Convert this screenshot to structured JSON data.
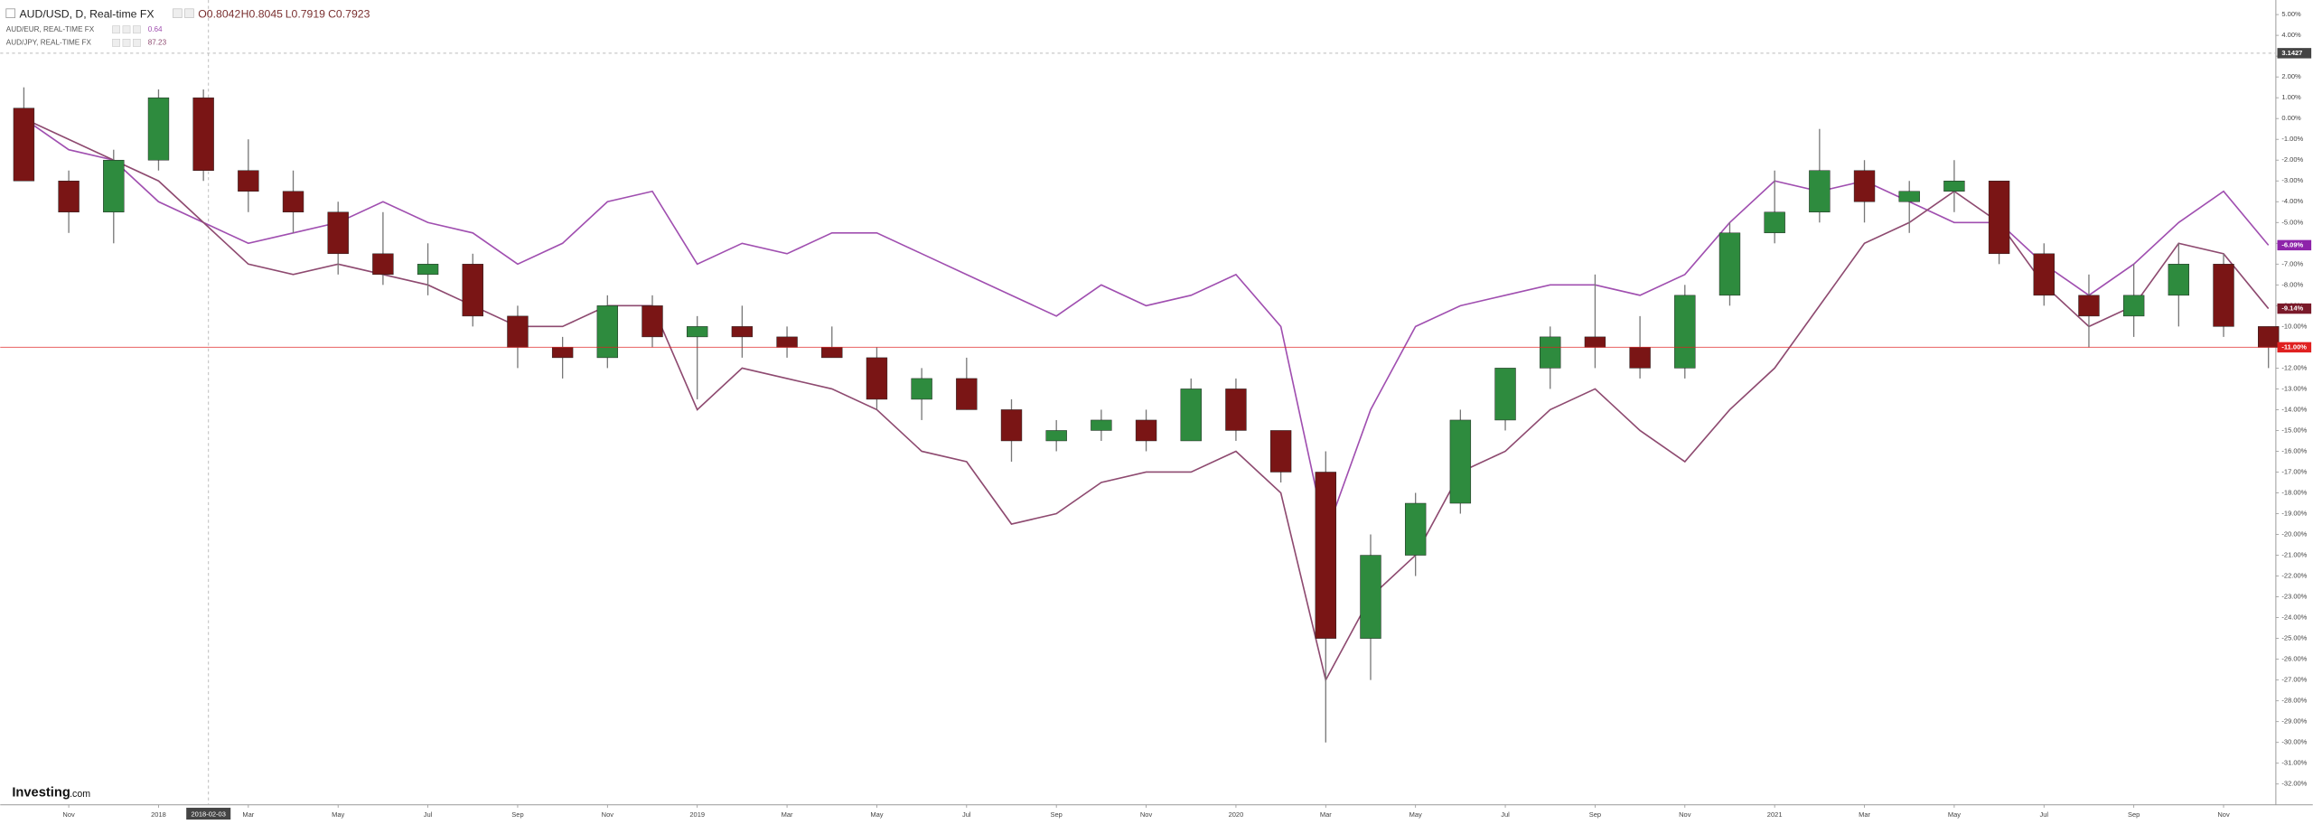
{
  "chart_data": {
    "type": "candlestick",
    "title": "AUD/USD, D, Real-time FX",
    "ohlc_labels": [
      "O0.8042",
      "H0.8045",
      "L0.7919",
      "C0.7923"
    ],
    "logo": [
      "Investing",
      ".com"
    ],
    "crosshair_x_label": "2018-02-03",
    "categories": [
      null,
      "Nov",
      null,
      "2018",
      null,
      "Mar",
      null,
      "May",
      null,
      "Jul",
      null,
      "Sep",
      null,
      "Nov",
      null,
      "2019",
      null,
      "Mar",
      null,
      "May",
      null,
      "Jul",
      null,
      "Sep",
      null,
      "Nov",
      null,
      "2020",
      null,
      "Mar",
      null,
      "May",
      null,
      "Jul",
      null,
      "Sep",
      null,
      "Nov",
      null,
      "2021",
      null,
      "Mar",
      null,
      "May",
      null,
      "Jul",
      null,
      "Sep",
      null,
      "Nov",
      null
    ],
    "open": [
      0.5,
      -3,
      -4.5,
      -2,
      1,
      -2.5,
      -3.5,
      -4.5,
      -6.5,
      -7.5,
      -7,
      -9.5,
      -11,
      -11.5,
      -9,
      -10.5,
      -10,
      -10.5,
      -11,
      -11.5,
      -13.5,
      -12.5,
      -14,
      -15.5,
      -15,
      -14.5,
      -15.5,
      -13,
      -15,
      -17,
      -25,
      -21,
      -18.5,
      -14.5,
      -12,
      -10.5,
      -11,
      -12,
      -8.5,
      -5.5,
      -4.5,
      -2.5,
      -4,
      -3.5,
      -3,
      -6.5,
      -8.5,
      -9.5,
      -8.5,
      -7,
      -10
    ],
    "high": [
      1.5,
      -2.5,
      -1.5,
      1.4,
      1.4,
      -1,
      -2.5,
      -4,
      -4.5,
      -6,
      -6.5,
      -9,
      -10.5,
      -8.5,
      -8.5,
      -9.5,
      -9,
      -10,
      -10,
      -11,
      -12,
      -11.5,
      -13.5,
      -14.5,
      -14,
      -14,
      -12.5,
      -12.5,
      -15,
      -16,
      -20,
      -18,
      -14,
      -12,
      -10,
      -7.5,
      -9.5,
      -8,
      -5,
      -2.5,
      -0.5,
      -2,
      -3,
      -2,
      -3,
      -6,
      -7.5,
      -7,
      -6,
      -6.5,
      -10
    ],
    "low": [
      -3,
      -5.5,
      -6,
      -2.5,
      -3,
      -4.5,
      -5.5,
      -7.5,
      -8,
      -8.5,
      -10,
      -12,
      -12.5,
      -12,
      -11,
      -13.5,
      -11.5,
      -11.5,
      -11.5,
      -14,
      -14.5,
      -14,
      -16.5,
      -16,
      -15.5,
      -16,
      -15.5,
      -15.5,
      -17.5,
      -30,
      -27,
      -22,
      -19,
      -15,
      -13,
      -12,
      -12.5,
      -12.5,
      -9,
      -6,
      -5,
      -5,
      -5.5,
      -4.5,
      -7,
      -9,
      -11,
      -10.5,
      -10,
      -10.5,
      -12
    ],
    "close": [
      -3,
      -4.5,
      -2,
      1,
      -2.5,
      -3.5,
      -4.5,
      -6.5,
      -7.5,
      -7,
      -9.5,
      -11,
      -11.5,
      -9,
      -10.5,
      -10,
      -10.5,
      -11,
      -11.5,
      -13.5,
      -12.5,
      -14,
      -15.5,
      -15,
      -14.5,
      -15.5,
      -13,
      -15,
      -17,
      -25,
      -21,
      -18.5,
      -14.5,
      -12,
      -10.5,
      -11,
      -12,
      -8.5,
      -5.5,
      -4.5,
      -2.5,
      -4,
      -3.5,
      -3,
      -6.5,
      -8.5,
      -9.5,
      -8.5,
      -7,
      -10,
      -11
    ],
    "up_color": "#2e8b3e",
    "down_color": "#7a1515",
    "series": [
      {
        "name": "AUD/EUR, REAL-TIME FX",
        "price": "0.64",
        "color": "#a04fb0",
        "values": [
          0,
          -1.5,
          -2,
          -4,
          -5,
          -6,
          -5.5,
          -5,
          -4,
          -5,
          -5.5,
          -7,
          -6,
          -4,
          -3.5,
          -7,
          -6,
          -6.5,
          -5.5,
          -5.5,
          -6.5,
          -7.5,
          -8.5,
          -9.5,
          -8,
          -9,
          -8.5,
          -7.5,
          -10,
          -20,
          -14,
          -10,
          -9,
          -8.5,
          -8,
          -8,
          -8.5,
          -7.5,
          -5,
          -3,
          -3.5,
          -3,
          -4,
          -5,
          -5,
          -7,
          -8.5,
          -7,
          -5,
          -3.5,
          -6.09
        ]
      },
      {
        "name": "AUD/JPY, REAL-TIME FX",
        "price": "87.23",
        "color": "#8e4a70",
        "values": [
          0,
          -1,
          -2,
          -3,
          -5,
          -7,
          -7.5,
          -7,
          -7.5,
          -8,
          -9,
          -10,
          -10,
          -9,
          -9,
          -14,
          -12,
          -12.5,
          -13,
          -14,
          -16,
          -16.5,
          -19.5,
          -19,
          -17.5,
          -17,
          -17,
          -16,
          -18,
          -27,
          -23,
          -21,
          -17,
          -16,
          -14,
          -13,
          -15,
          -16.5,
          -14,
          -12,
          -9,
          -6,
          -5,
          -3.5,
          -5,
          -8,
          -10,
          -9,
          -6,
          -6.5,
          -9.14
        ]
      }
    ],
    "ylim": [
      -33,
      5.7
    ],
    "yticks": [
      {
        "value": 5,
        "label": "5.00%"
      },
      {
        "value": 4,
        "label": "4.00%"
      },
      {
        "value": 3,
        "label": "3.00%"
      },
      {
        "value": 2,
        "label": "2.00%"
      },
      {
        "value": 1,
        "label": "1.00%"
      },
      {
        "value": 0,
        "label": "0.00%"
      },
      {
        "value": -1,
        "label": "-1.00%"
      },
      {
        "value": -2,
        "label": "-2.00%"
      },
      {
        "value": -3,
        "label": "-3.00%"
      },
      {
        "value": -4,
        "label": "-4.00%"
      },
      {
        "value": -5,
        "label": "-5.00%"
      },
      {
        "value": -6,
        "label": "-6.00%"
      },
      {
        "value": -7,
        "label": "-7.00%"
      },
      {
        "value": -8,
        "label": "-8.00%"
      },
      {
        "value": -9,
        "label": "-9.00%"
      },
      {
        "value": -10,
        "label": "-10.00%"
      },
      {
        "value": -11,
        "label": "-11.00%"
      },
      {
        "value": -12,
        "label": "-12.00%"
      },
      {
        "value": -13,
        "label": "-13.00%"
      },
      {
        "value": -14,
        "label": "-14.00%"
      },
      {
        "value": -15,
        "label": "-15.00%"
      },
      {
        "value": -16,
        "label": "-16.00%"
      },
      {
        "value": -17,
        "label": "-17.00%"
      },
      {
        "value": -18,
        "label": "-18.00%"
      },
      {
        "value": -19,
        "label": "-19.00%"
      },
      {
        "value": -20,
        "label": "-20.00%"
      },
      {
        "value": -21,
        "label": "-21.00%"
      },
      {
        "value": -22,
        "label": "-22.00%"
      },
      {
        "value": -23,
        "label": "-23.00%"
      },
      {
        "value": -24,
        "label": "-24.00%"
      },
      {
        "value": -25,
        "label": "-25.00%"
      },
      {
        "value": -26,
        "label": "-26.00%"
      },
      {
        "value": -27,
        "label": "-27.00%"
      },
      {
        "value": -28,
        "label": "-28.00%"
      },
      {
        "value": -29,
        "label": "-29.00%"
      },
      {
        "value": -30,
        "label": "-30.00%"
      },
      {
        "value": -31,
        "label": "-31.00%"
      },
      {
        "value": -32,
        "label": "-32.00%"
      }
    ],
    "y_markers": [
      {
        "value": 3.1427,
        "label": "3.1427",
        "color": "#444444"
      },
      {
        "value": -6.09,
        "label": "-6.09%",
        "color": "#8e24aa"
      },
      {
        "value": -9.14,
        "label": "-9.14%",
        "color": "#7a1a2a"
      },
      {
        "value": -11,
        "label": "-11.00%",
        "color": "#e02020"
      }
    ]
  }
}
